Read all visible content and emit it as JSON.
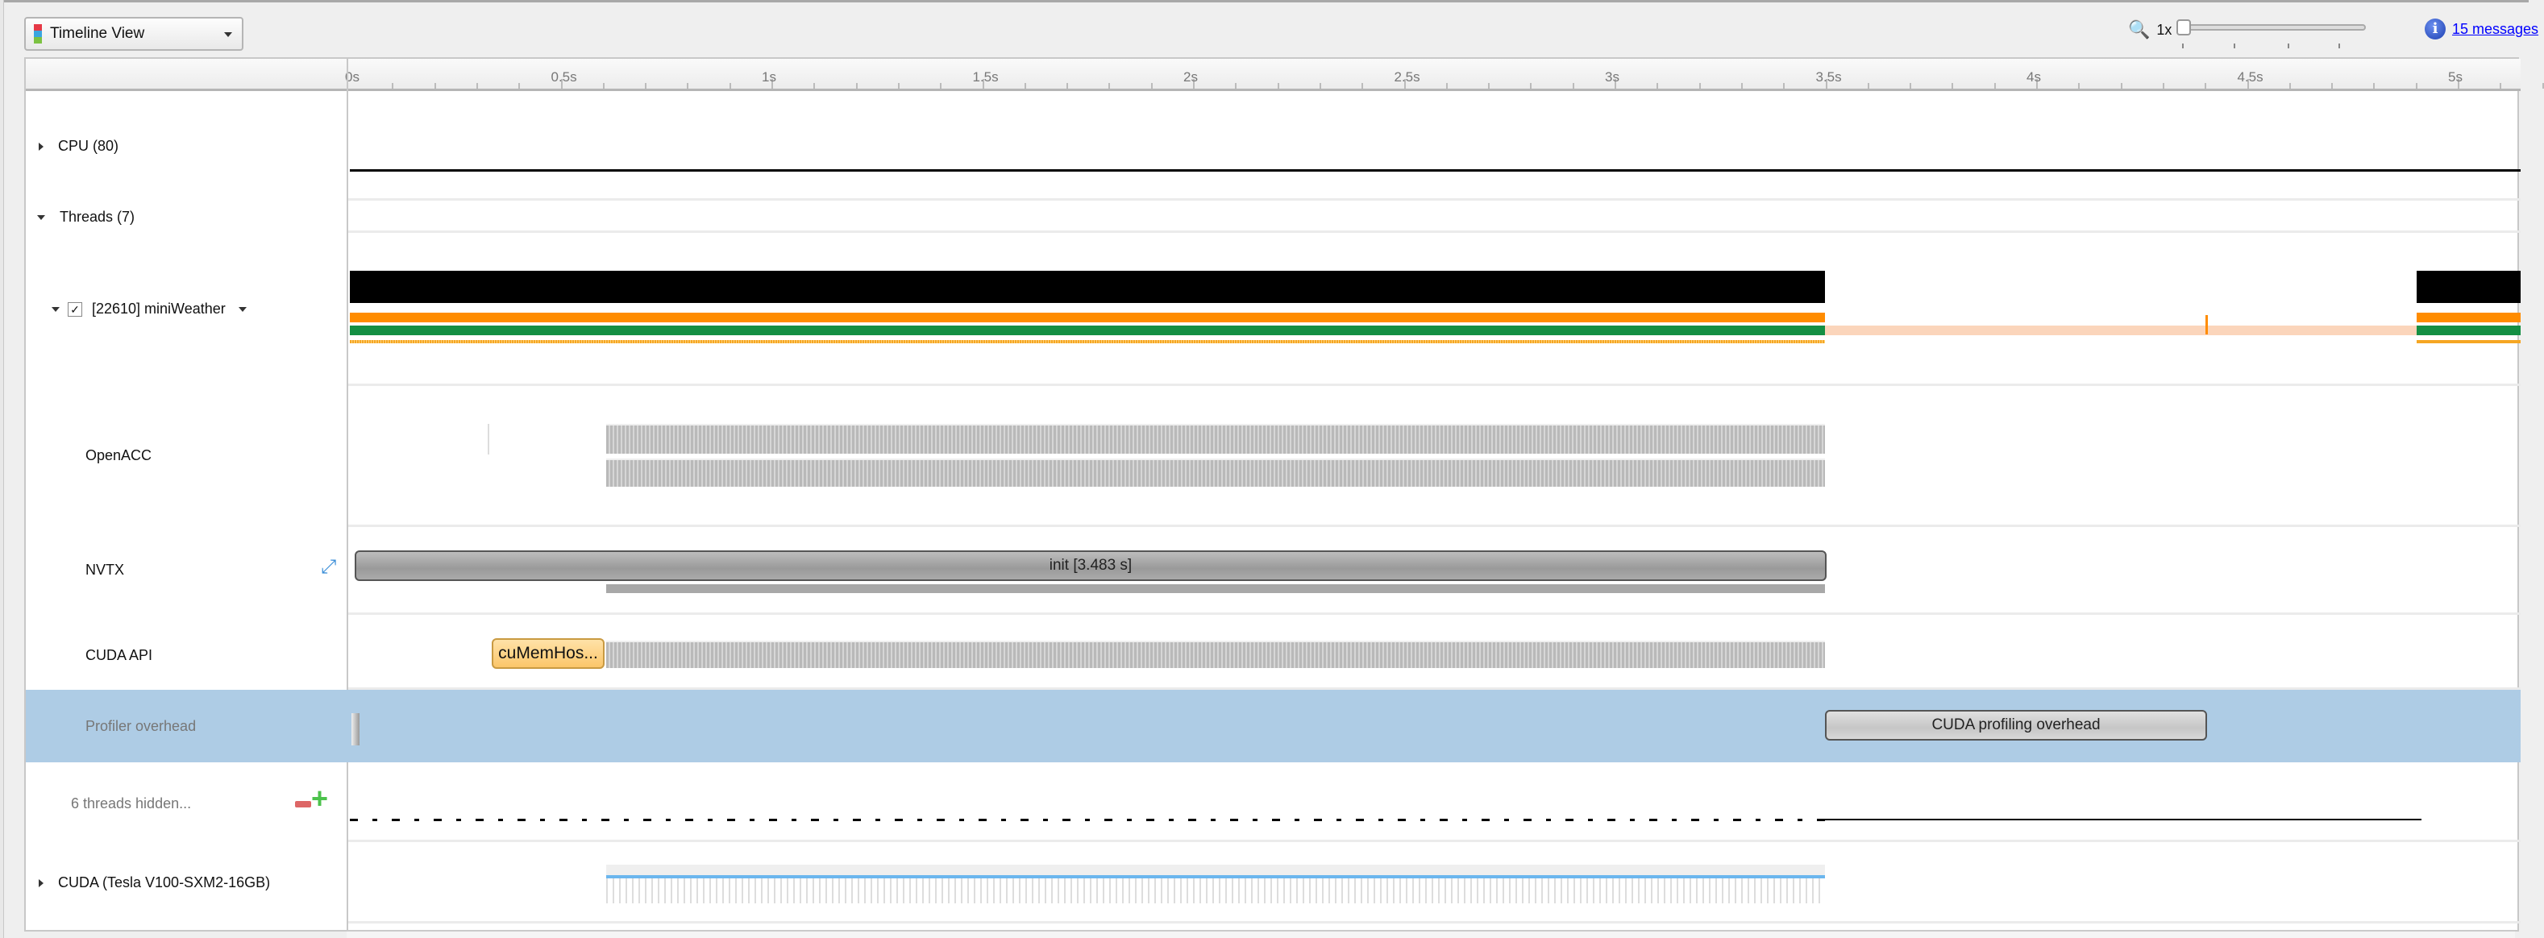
{
  "toolbar": {
    "view_selector": "Timeline View",
    "zoom_level": "1x",
    "zoom_fraction": 0,
    "messages": "15 messages"
  },
  "ruler": {
    "unit": "s",
    "start": 0,
    "end": 5.2,
    "labels": [
      "0s",
      "0.5s",
      "1s",
      "1.5s",
      "2s",
      "2.5s",
      "3s",
      "3.5s",
      "4s",
      "4.5s",
      "5s"
    ]
  },
  "rows": {
    "cpu": "CPU (80)",
    "threads": "Threads (7)",
    "thread": {
      "label": "[22610] miniWeather",
      "checked": true
    },
    "openacc": "OpenACC",
    "nvtx": "NVTX",
    "cuda_api": "CUDA API",
    "profiler": "Profiler overhead",
    "hidden": "6 threads hidden...",
    "cuda": "CUDA (Tesla V100-SXM2-16GB)"
  },
  "ranges": {
    "nvtx_init": {
      "label": "init [3.483 s]",
      "start": 0.02,
      "end": 3.5
    },
    "cuda_api_call": {
      "label": "cuMemHos...",
      "start": 0.34,
      "end": 0.61
    },
    "profiling_overhead": {
      "label": "CUDA profiling overhead",
      "start": 3.5,
      "end": 4.4
    }
  },
  "colors": {
    "thread_black": "#000000",
    "cpu_orange": "#ff8c00",
    "running_green": "#148f43",
    "idle_peach": "#fbd5bb",
    "selection": "#aecce5",
    "nvtx_gray": "#a8a8a8",
    "cuda_api_orange": "#fdd48a"
  }
}
